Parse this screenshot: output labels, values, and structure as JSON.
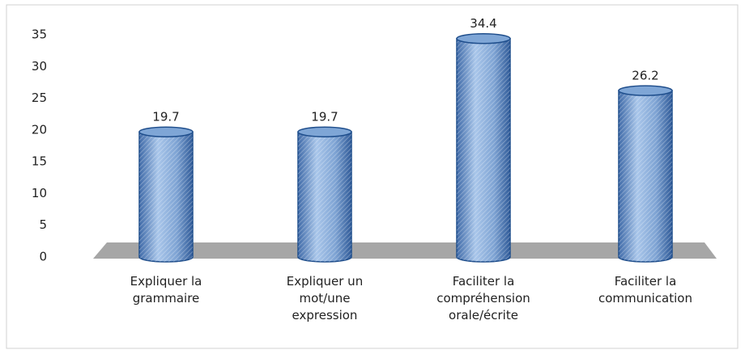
{
  "chart_data": {
    "type": "bar",
    "categories": [
      "Expliquer la\ngrammaire",
      "Expliquer un\nmot/une\nexpression",
      "Faciliter la\ncompréhension\norale/écrite",
      "Faciliter la\ncommunication"
    ],
    "values": [
      19.7,
      19.7,
      34.4,
      26.2
    ],
    "color": "#7fa6d6",
    "ylim": [
      0,
      35
    ],
    "yticks": [
      0,
      5,
      10,
      15,
      20,
      25,
      30,
      35
    ],
    "grid": false
  }
}
